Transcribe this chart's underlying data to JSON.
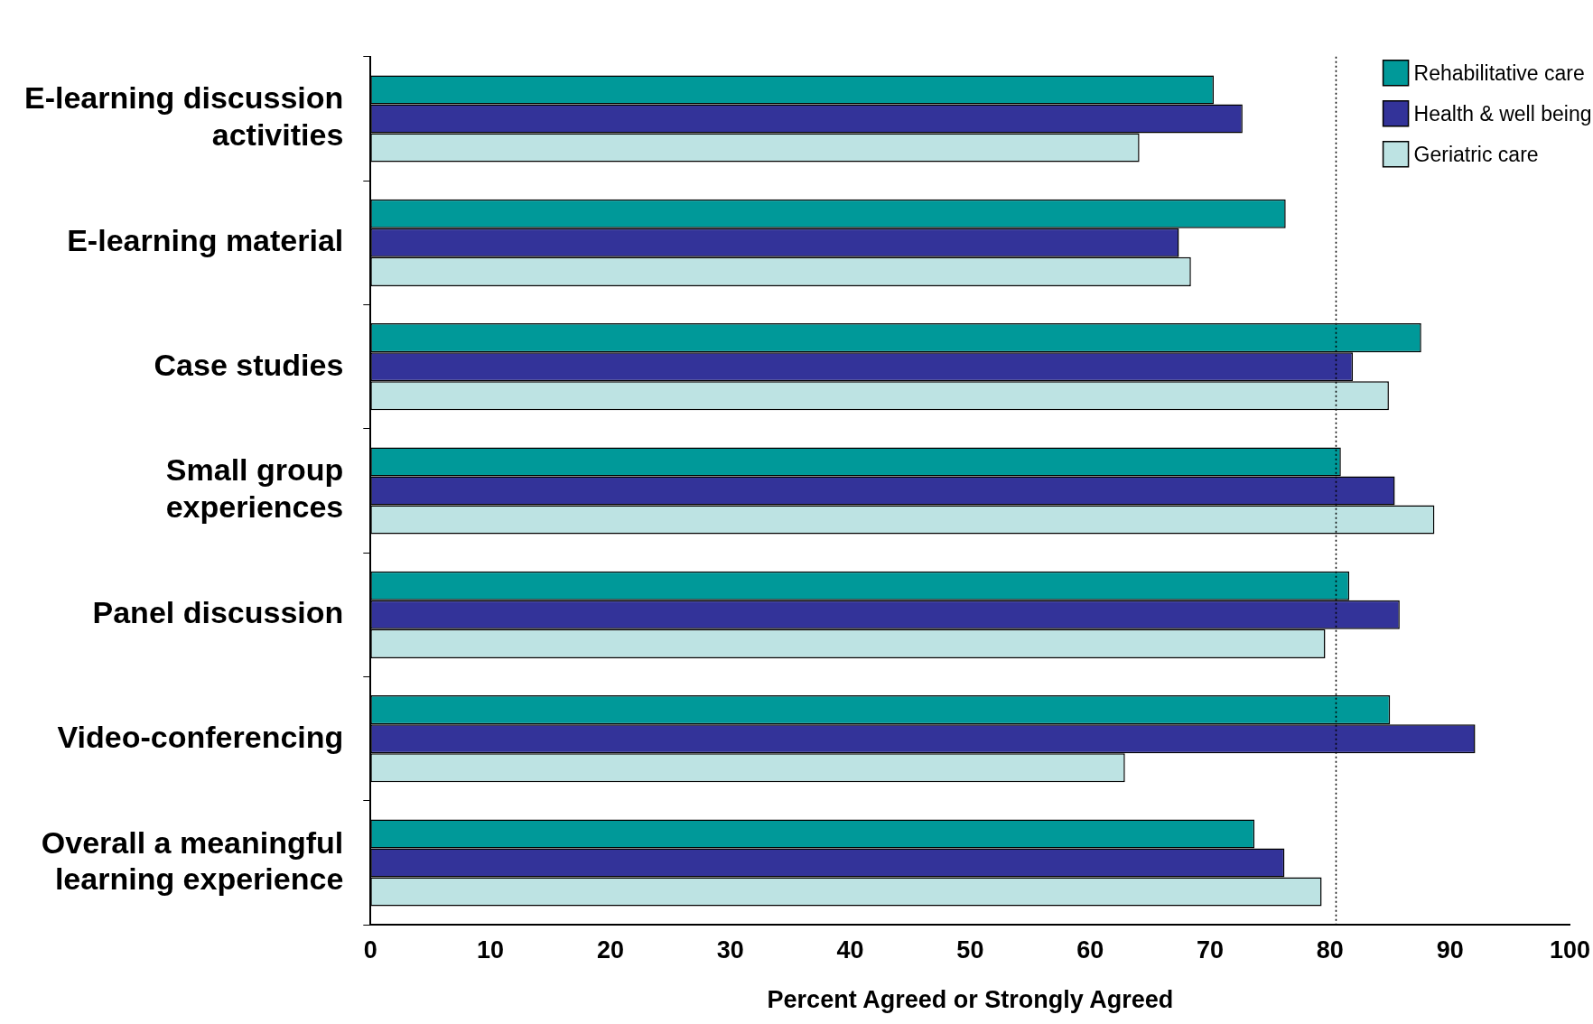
{
  "chart_data": {
    "type": "bar",
    "orientation": "horizontal",
    "xlabel": "Percent Agreed or Strongly Agreed",
    "categories": [
      [
        "E-learning discussion",
        "activities"
      ],
      "E-learning material",
      "Case studies",
      [
        "Small group",
        "experiences"
      ],
      "Panel discussion",
      "Video-conferencing",
      [
        "Overall a meaningful",
        "learning experience"
      ]
    ],
    "series": [
      {
        "name": "Rehabilitative care",
        "color": "#009999",
        "values": [
          70.3,
          76.3,
          87.6,
          80.9,
          81.6,
          85.0,
          73.7
        ]
      },
      {
        "name": "Health & well being",
        "color": "#333399",
        "values": [
          72.7,
          67.4,
          81.9,
          85.4,
          85.8,
          92.1,
          76.2
        ]
      },
      {
        "name": "Geriatric care",
        "color": "#bde3e3",
        "values": [
          64.1,
          68.4,
          84.9,
          88.7,
          79.6,
          62.9,
          79.3
        ]
      }
    ],
    "xlim": [
      0,
      100
    ],
    "xticks": [
      0,
      10,
      20,
      30,
      40,
      50,
      60,
      70,
      80,
      90,
      100
    ],
    "ref_lines": [
      {
        "axis": "x",
        "value": 80.5,
        "line_style": "dotted",
        "color": "#000000"
      }
    ],
    "grid": false,
    "legend": "top right"
  }
}
